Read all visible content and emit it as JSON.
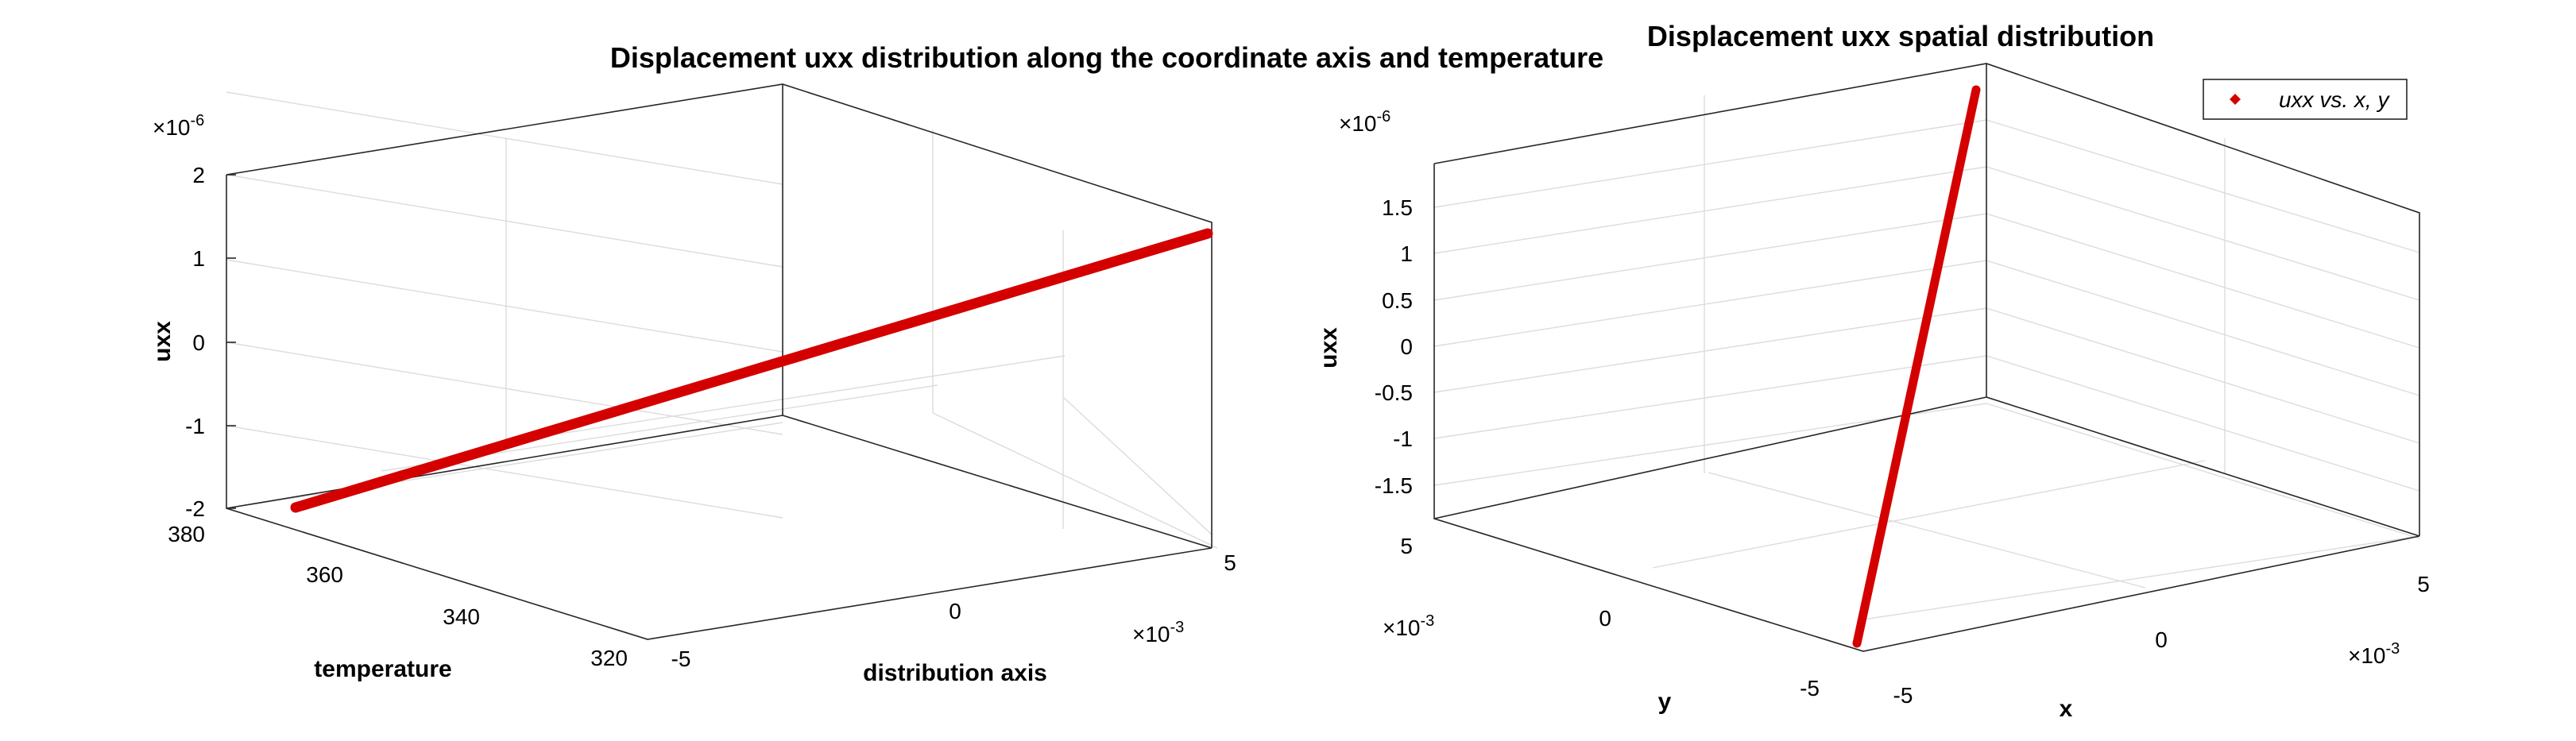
{
  "chart_data": [
    {
      "type": "line3d",
      "title": "Displacement uxx distribution along the coordinate axis and temperature",
      "xlabel": "distribution axis",
      "ylabel": "temperature",
      "zlabel": "uxx",
      "x_exponent": "×10",
      "x_exponent_power": "-3",
      "z_exponent": "×10",
      "z_exponent_power": "-6",
      "xlim": [
        -0.005,
        0.005
      ],
      "ylim": [
        320,
        380
      ],
      "zlim": [
        -2e-06,
        2e-06
      ],
      "x_ticks": [
        "-5",
        "0",
        "5"
      ],
      "y_ticks": [
        "320",
        "340",
        "360",
        "380"
      ],
      "z_ticks": [
        "-2",
        "-1",
        "0",
        "1",
        "2"
      ],
      "grid": true,
      "series": [
        {
          "x": [
            -0.005,
            0.005
          ],
          "y": [
            380,
            380
          ],
          "z": [
            -1.97e-06,
            1.3e-06
          ],
          "color": "#d40000"
        }
      ]
    },
    {
      "type": "line3d",
      "title": "Displacement uxx spatial distribution",
      "xlabel": "x",
      "ylabel": "y",
      "zlabel": "uxx",
      "x_exponent": "×10",
      "x_exponent_power": "-3",
      "y_exponent": "×10",
      "y_exponent_power": "-3",
      "z_exponent": "×10",
      "z_exponent_power": "-6",
      "xlim": [
        -0.005,
        0.005
      ],
      "ylim": [
        -0.005,
        0.005
      ],
      "zlim": [
        -1.75e-06,
        1.75e-06
      ],
      "x_ticks": [
        "-5",
        "0",
        "5"
      ],
      "y_ticks": [
        "-5",
        "0",
        "5"
      ],
      "z_ticks": [
        "-1.5",
        "-1",
        "-0.5",
        "0",
        "0.5",
        "1",
        "1.5"
      ],
      "grid": true,
      "legend": {
        "label": "uxx vs. x, y",
        "position": "top-right"
      },
      "series": [
        {
          "name": "uxx vs. x, y",
          "x": [
            -0.005,
            0.005
          ],
          "y": [
            -0.005,
            0.005
          ],
          "z": [
            -1.75e-06,
            1.75e-06
          ],
          "color": "#d40000"
        }
      ]
    }
  ]
}
